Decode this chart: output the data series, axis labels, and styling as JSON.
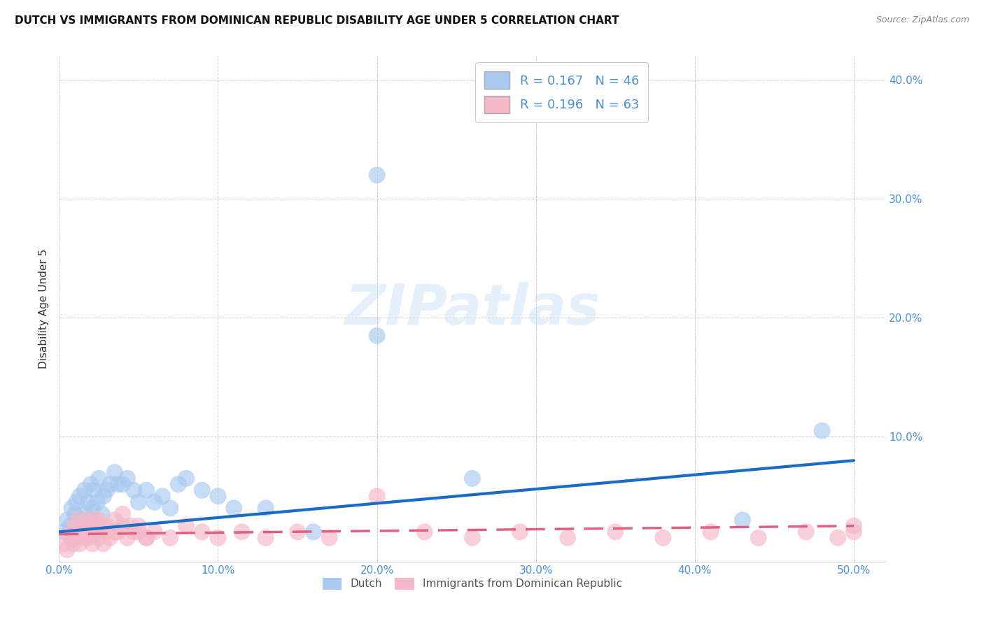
{
  "title": "DUTCH VS IMMIGRANTS FROM DOMINICAN REPUBLIC DISABILITY AGE UNDER 5 CORRELATION CHART",
  "source": "Source: ZipAtlas.com",
  "ylabel": "Disability Age Under 5",
  "xlim": [
    0.0,
    0.52
  ],
  "ylim": [
    -0.005,
    0.42
  ],
  "xticks": [
    0.0,
    0.1,
    0.2,
    0.3,
    0.4,
    0.5
  ],
  "xticklabels": [
    "0.0%",
    "10.0%",
    "20.0%",
    "30.0%",
    "40.0%",
    "50.0%"
  ],
  "yticks": [
    0.1,
    0.2,
    0.3,
    0.4
  ],
  "yticklabels": [
    "10.0%",
    "20.0%",
    "30.0%",
    "40.0%"
  ],
  "dutch_color": "#a8c8f0",
  "dutch_line_color": "#1a6cc4",
  "dominican_color": "#f4b8c8",
  "dominican_line_color": "#e06080",
  "dutch_R": 0.167,
  "dutch_N": 46,
  "dominican_R": 0.196,
  "dominican_N": 63,
  "watermark": "ZIPatlas",
  "dutch_points_x": [
    0.003,
    0.005,
    0.007,
    0.008,
    0.009,
    0.01,
    0.011,
    0.012,
    0.013,
    0.014,
    0.015,
    0.016,
    0.017,
    0.018,
    0.019,
    0.02,
    0.021,
    0.022,
    0.024,
    0.025,
    0.027,
    0.028,
    0.03,
    0.032,
    0.035,
    0.037,
    0.04,
    0.043,
    0.047,
    0.05,
    0.055,
    0.06,
    0.065,
    0.07,
    0.075,
    0.08,
    0.09,
    0.1,
    0.11,
    0.13,
    0.16,
    0.2,
    0.2,
    0.26,
    0.43,
    0.48
  ],
  "dutch_points_y": [
    0.02,
    0.03,
    0.025,
    0.04,
    0.015,
    0.035,
    0.045,
    0.02,
    0.05,
    0.03,
    0.025,
    0.055,
    0.035,
    0.045,
    0.03,
    0.06,
    0.04,
    0.055,
    0.045,
    0.065,
    0.035,
    0.05,
    0.055,
    0.06,
    0.07,
    0.06,
    0.06,
    0.065,
    0.055,
    0.045,
    0.055,
    0.045,
    0.05,
    0.04,
    0.06,
    0.065,
    0.055,
    0.05,
    0.04,
    0.04,
    0.02,
    0.185,
    0.32,
    0.065,
    0.03,
    0.105
  ],
  "dominican_points_x": [
    0.003,
    0.005,
    0.007,
    0.008,
    0.009,
    0.01,
    0.011,
    0.012,
    0.013,
    0.014,
    0.015,
    0.016,
    0.017,
    0.018,
    0.019,
    0.02,
    0.021,
    0.022,
    0.024,
    0.025,
    0.027,
    0.028,
    0.03,
    0.032,
    0.035,
    0.037,
    0.04,
    0.043,
    0.047,
    0.05,
    0.055,
    0.06,
    0.07,
    0.08,
    0.09,
    0.1,
    0.115,
    0.13,
    0.15,
    0.17,
    0.2,
    0.23,
    0.26,
    0.29,
    0.32,
    0.35,
    0.38,
    0.41,
    0.44,
    0.47,
    0.49,
    0.5,
    0.5,
    0.01,
    0.015,
    0.02,
    0.025,
    0.03,
    0.035,
    0.04,
    0.045,
    0.05,
    0.055
  ],
  "dominican_points_y": [
    0.01,
    0.005,
    0.015,
    0.02,
    0.01,
    0.025,
    0.015,
    0.03,
    0.01,
    0.02,
    0.025,
    0.015,
    0.03,
    0.02,
    0.015,
    0.025,
    0.01,
    0.03,
    0.02,
    0.015,
    0.025,
    0.01,
    0.02,
    0.015,
    0.03,
    0.02,
    0.025,
    0.015,
    0.02,
    0.025,
    0.015,
    0.02,
    0.015,
    0.025,
    0.02,
    0.015,
    0.02,
    0.015,
    0.02,
    0.015,
    0.05,
    0.02,
    0.015,
    0.02,
    0.015,
    0.02,
    0.015,
    0.02,
    0.015,
    0.02,
    0.015,
    0.02,
    0.025,
    0.015,
    0.025,
    0.02,
    0.03,
    0.025,
    0.02,
    0.035,
    0.025,
    0.02,
    0.015
  ],
  "dutch_line_x": [
    0.0,
    0.5
  ],
  "dutch_line_y": [
    0.02,
    0.08
  ],
  "dominican_line_x": [
    0.0,
    0.5
  ],
  "dominican_line_y": [
    0.018,
    0.025
  ]
}
